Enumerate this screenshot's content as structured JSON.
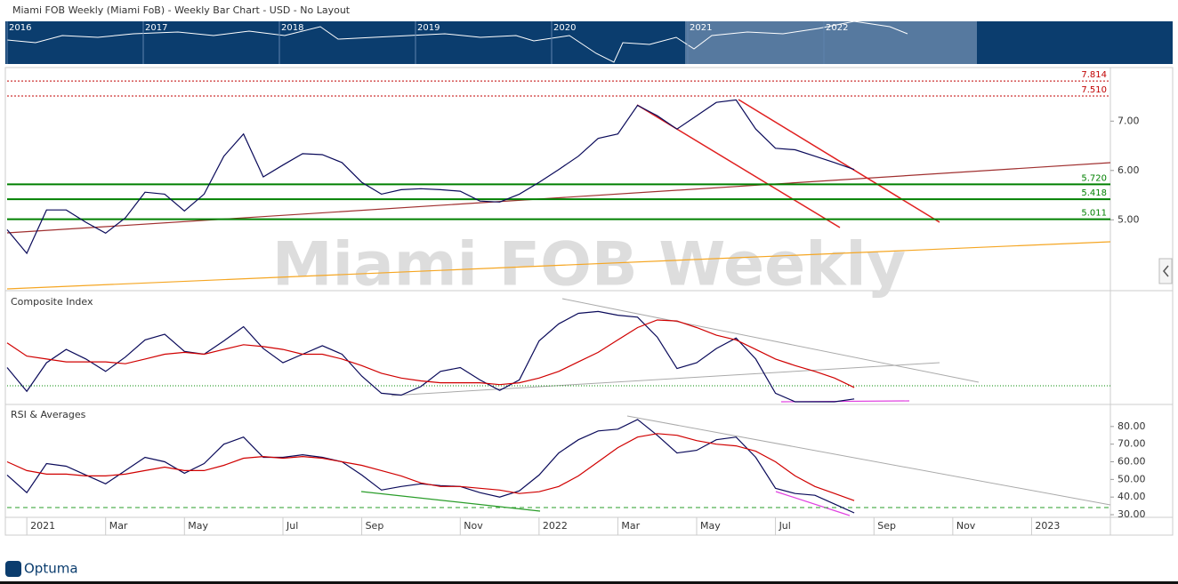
{
  "header": {
    "title": "Miami FOB Weekly (Miami FoB) - Weekly Bar Chart - USD - No Layout"
  },
  "navigator": {
    "years": [
      "2016",
      "2017",
      "2018",
      "2019",
      "2020",
      "2021",
      "2022"
    ]
  },
  "watermark": "Miami FOB Weekly",
  "logo": "Optuma",
  "chart_data": [
    {
      "type": "line",
      "ylim": [
        3.6,
        8.05
      ],
      "yticks": [
        {
          "value": 5,
          "label": "5.00"
        },
        {
          "value": 6,
          "label": "6.00"
        },
        {
          "value": 7,
          "label": "7.00"
        }
      ],
      "hlines": [
        7.814,
        {
          "value": 7.51,
          "label": "7.510"
        },
        {
          "value": 5.72,
          "label": "5.720"
        },
        5.418,
        5.011
      ],
      "hline_colors": [
        "#c00000",
        "#c00000",
        "#008000",
        "#008000",
        "#008000"
      ],
      "series": [
        {
          "color": "#0a0a5a",
          "values": [
            4.8,
            4.32,
            5.2,
            5.2,
            4.95,
            4.73,
            5.04,
            5.56,
            5.52,
            5.18,
            5.52,
            6.29,
            6.74,
            5.87,
            6.11,
            6.34,
            6.32,
            6.16,
            5.76,
            5.52,
            5.61,
            5.63,
            5.61,
            5.58,
            5.38,
            5.36,
            5.52,
            5.76,
            6.02,
            6.29,
            6.65,
            6.74,
            7.32,
            7.11,
            6.84,
            7.11,
            7.38,
            7.43,
            6.84,
            6.45,
            6.42,
            6.29,
            6.16,
            6.02,
            null,
            null,
            null,
            null,
            null,
            null,
            null,
            null,
            null,
            null,
            null,
            null
          ]
        }
      ]
    },
    {
      "type": "line",
      "title": "Composite Index",
      "ylim": [
        0,
        100
      ],
      "series": [
        {
          "color": "#0a0a5a",
          "values": [
            36,
            11,
            41,
            55,
            45,
            32,
            47,
            65,
            71,
            53,
            50,
            64,
            79,
            56,
            41,
            50,
            59,
            50,
            27,
            9,
            7,
            16,
            32,
            36,
            23,
            12,
            23,
            64,
            82,
            93,
            95,
            91,
            89,
            68,
            35,
            41,
            56,
            67,
            45,
            9,
            0,
            0,
            0,
            3,
            null,
            null,
            null,
            null,
            null,
            null,
            null,
            null,
            null,
            null,
            null,
            null
          ]
        },
        {
          "color": "#d00000",
          "values": [
            62,
            48,
            45,
            42,
            42,
            42,
            40,
            45,
            50,
            52,
            50,
            55,
            60,
            58,
            55,
            50,
            50,
            45,
            38,
            30,
            25,
            22,
            20,
            20,
            20,
            18,
            20,
            25,
            32,
            42,
            52,
            65,
            78,
            86,
            85,
            78,
            70,
            65,
            55,
            45,
            38,
            32,
            25,
            15,
            null,
            null,
            null,
            null,
            null,
            null,
            null,
            null,
            null,
            null,
            null,
            null
          ]
        }
      ]
    },
    {
      "type": "line",
      "title": "RSI & Averages",
      "ylim": [
        28,
        91.5
      ],
      "yticks": [
        {
          "value": 30,
          "label": "30.00"
        },
        {
          "value": 40,
          "label": "40.00"
        },
        {
          "value": 50,
          "label": "50.00"
        },
        {
          "value": 60,
          "label": "60.00"
        },
        {
          "value": 70,
          "label": "70.00"
        },
        {
          "value": 80,
          "label": "80.00"
        }
      ],
      "categories": [
        null,
        "2021",
        null,
        null,
        null,
        "Mar",
        null,
        null,
        null,
        "May",
        null,
        null,
        null,
        null,
        "Jul",
        null,
        null,
        null,
        "Sep",
        null,
        null,
        null,
        null,
        "Nov",
        null,
        null,
        null,
        "2022",
        null,
        null,
        null,
        "Mar",
        null,
        null,
        null,
        "May",
        null,
        null,
        null,
        "Jul",
        null,
        null,
        null,
        null,
        "Sep",
        null,
        null,
        null,
        "Nov",
        null,
        null,
        null,
        "2023",
        null,
        null,
        null
      ],
      "series": [
        {
          "color": "#0a0a5a",
          "values": [
            52.5,
            42.5,
            59,
            57.5,
            52.5,
            47.5,
            55,
            62.5,
            60,
            53.5,
            59,
            70,
            74,
            62.5,
            62.5,
            64,
            62.5,
            60,
            52.5,
            44,
            46,
            47.5,
            46.5,
            46,
            42.5,
            40,
            43.5,
            52.5,
            65,
            72.5,
            77.5,
            78.5,
            84,
            75,
            65,
            66.5,
            72.5,
            74,
            62.5,
            45,
            42,
            41,
            36,
            31,
            null,
            null,
            null,
            null,
            null,
            null,
            null,
            null,
            null,
            null,
            null,
            null
          ]
        },
        {
          "color": "#d00000",
          "values": [
            60,
            55,
            53,
            53,
            52,
            52,
            53,
            55,
            57,
            55,
            55,
            58,
            62,
            63,
            62,
            63,
            62,
            60,
            58,
            55,
            52,
            48,
            46,
            46,
            45,
            44,
            42,
            43,
            46,
            52,
            60,
            68,
            74,
            76,
            75,
            72,
            70,
            69,
            66,
            60,
            52,
            46,
            42,
            38,
            null,
            null,
            null,
            null,
            null,
            null,
            null,
            null,
            null,
            null,
            null,
            null
          ]
        }
      ]
    }
  ]
}
